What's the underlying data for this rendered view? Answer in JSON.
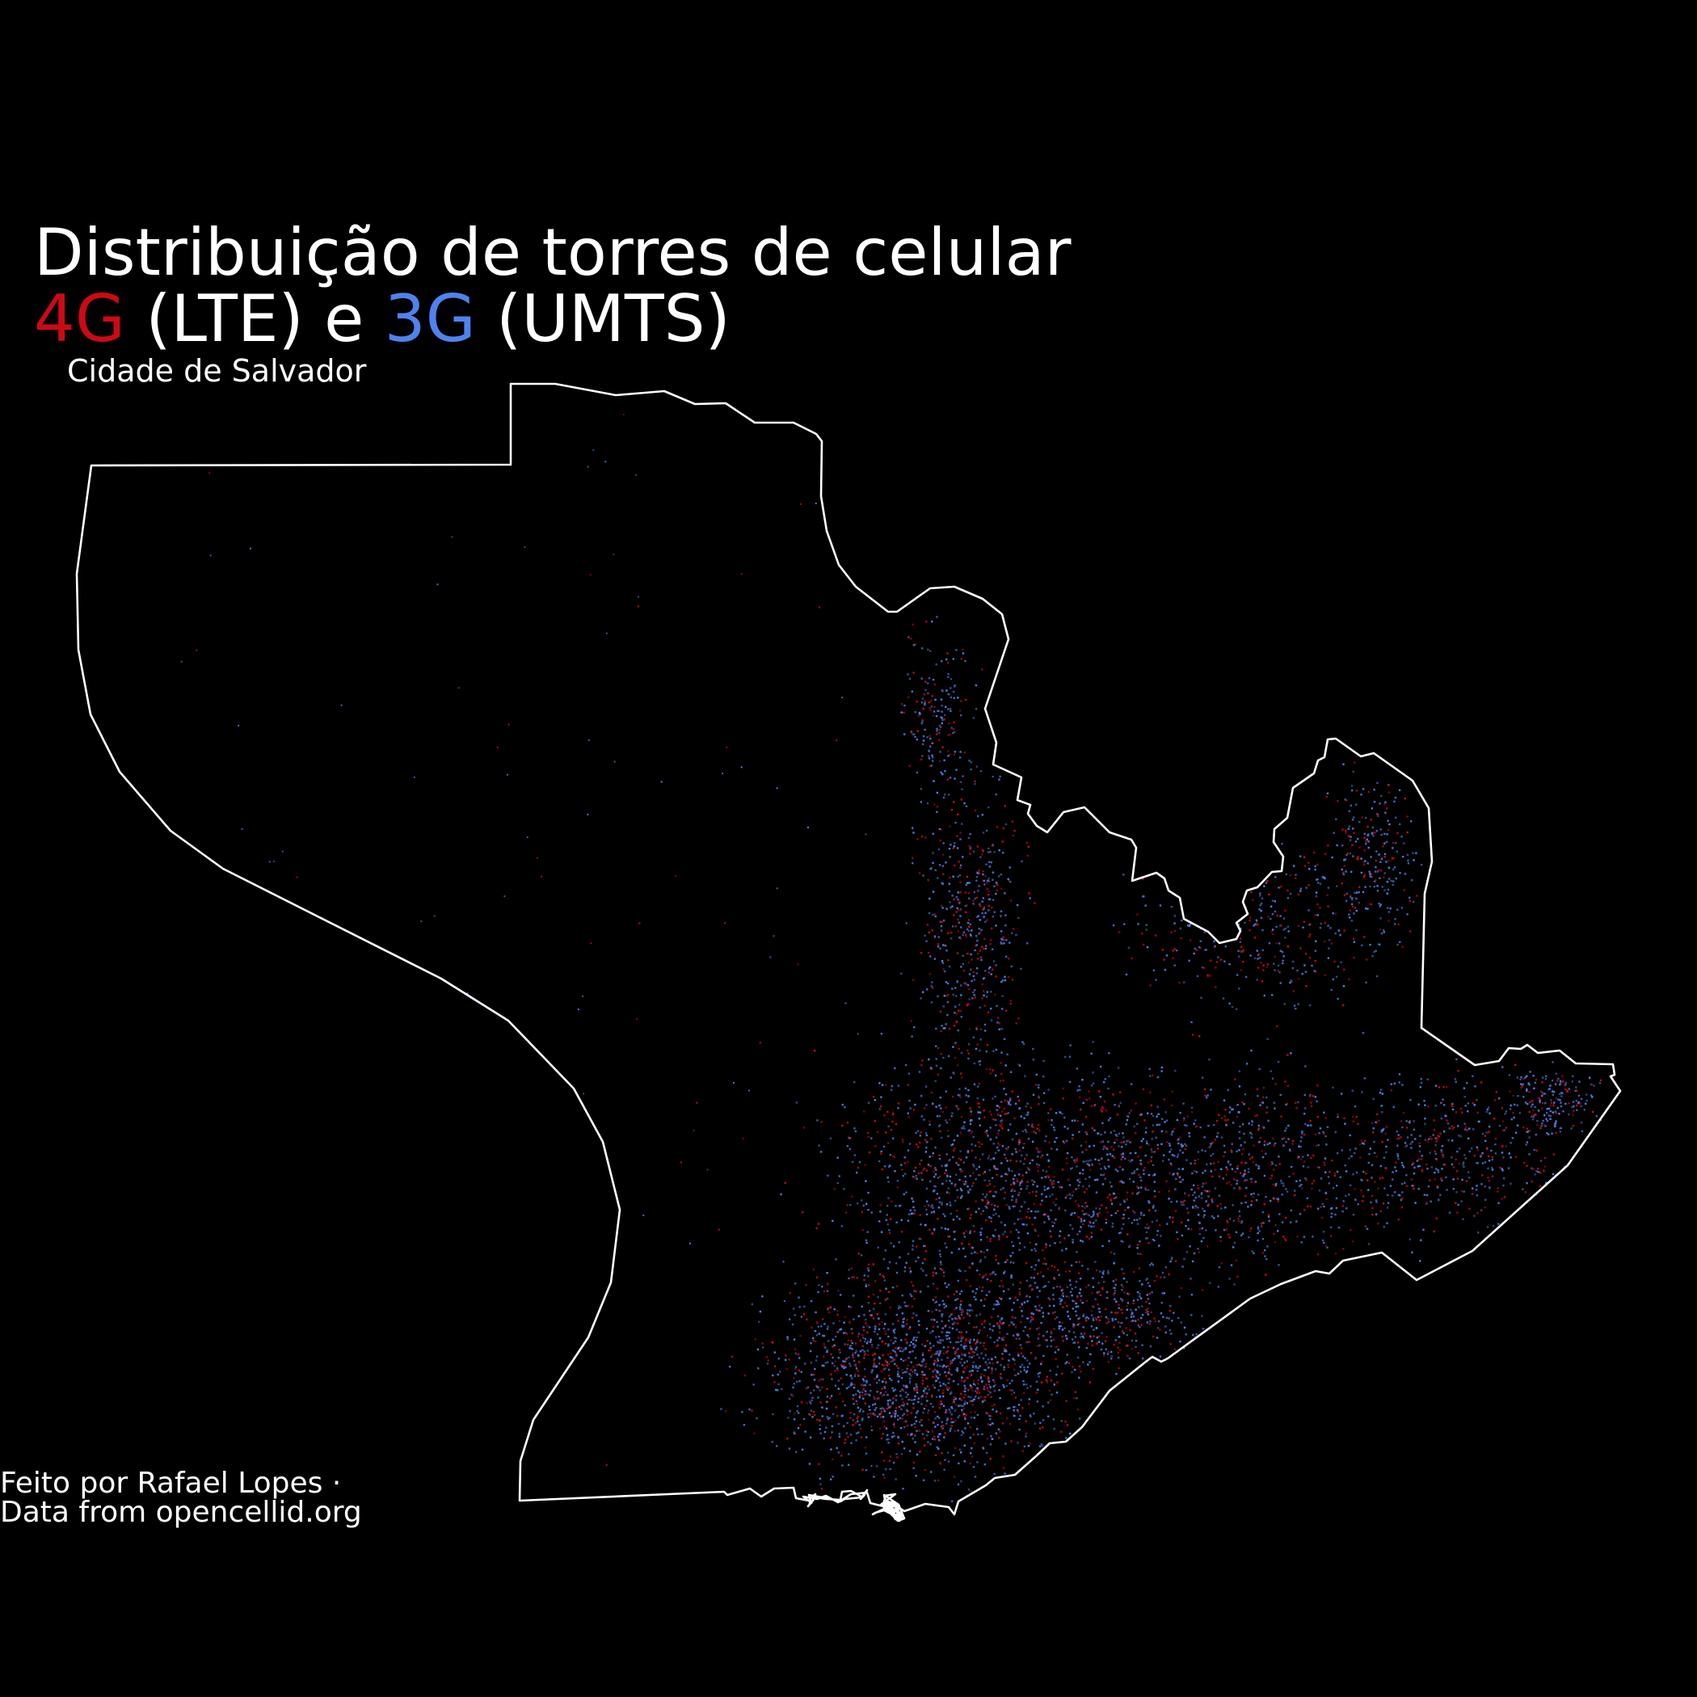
{
  "title": {
    "line1": "Distribuição de torres de celular",
    "lte_label": "4G",
    "lte_suffix": " (LTE) e ",
    "umts_label": "3G",
    "umts_suffix": " (UMTS)"
  },
  "subtitle": "Cidade de Salvador",
  "credits": {
    "line1": "Feito por Rafael Lopes ·",
    "line2": "Data from opencellid.org"
  },
  "colors": {
    "background": "#000000",
    "outline": "#ffffff",
    "lte": "#cc0a14",
    "umts": "#4f82ee",
    "text": "#ffffff"
  },
  "legend": [
    {
      "technology": "4G",
      "color": "#cc0a14"
    },
    {
      "technology": "3G",
      "color": "#4f82ee"
    }
  ]
}
